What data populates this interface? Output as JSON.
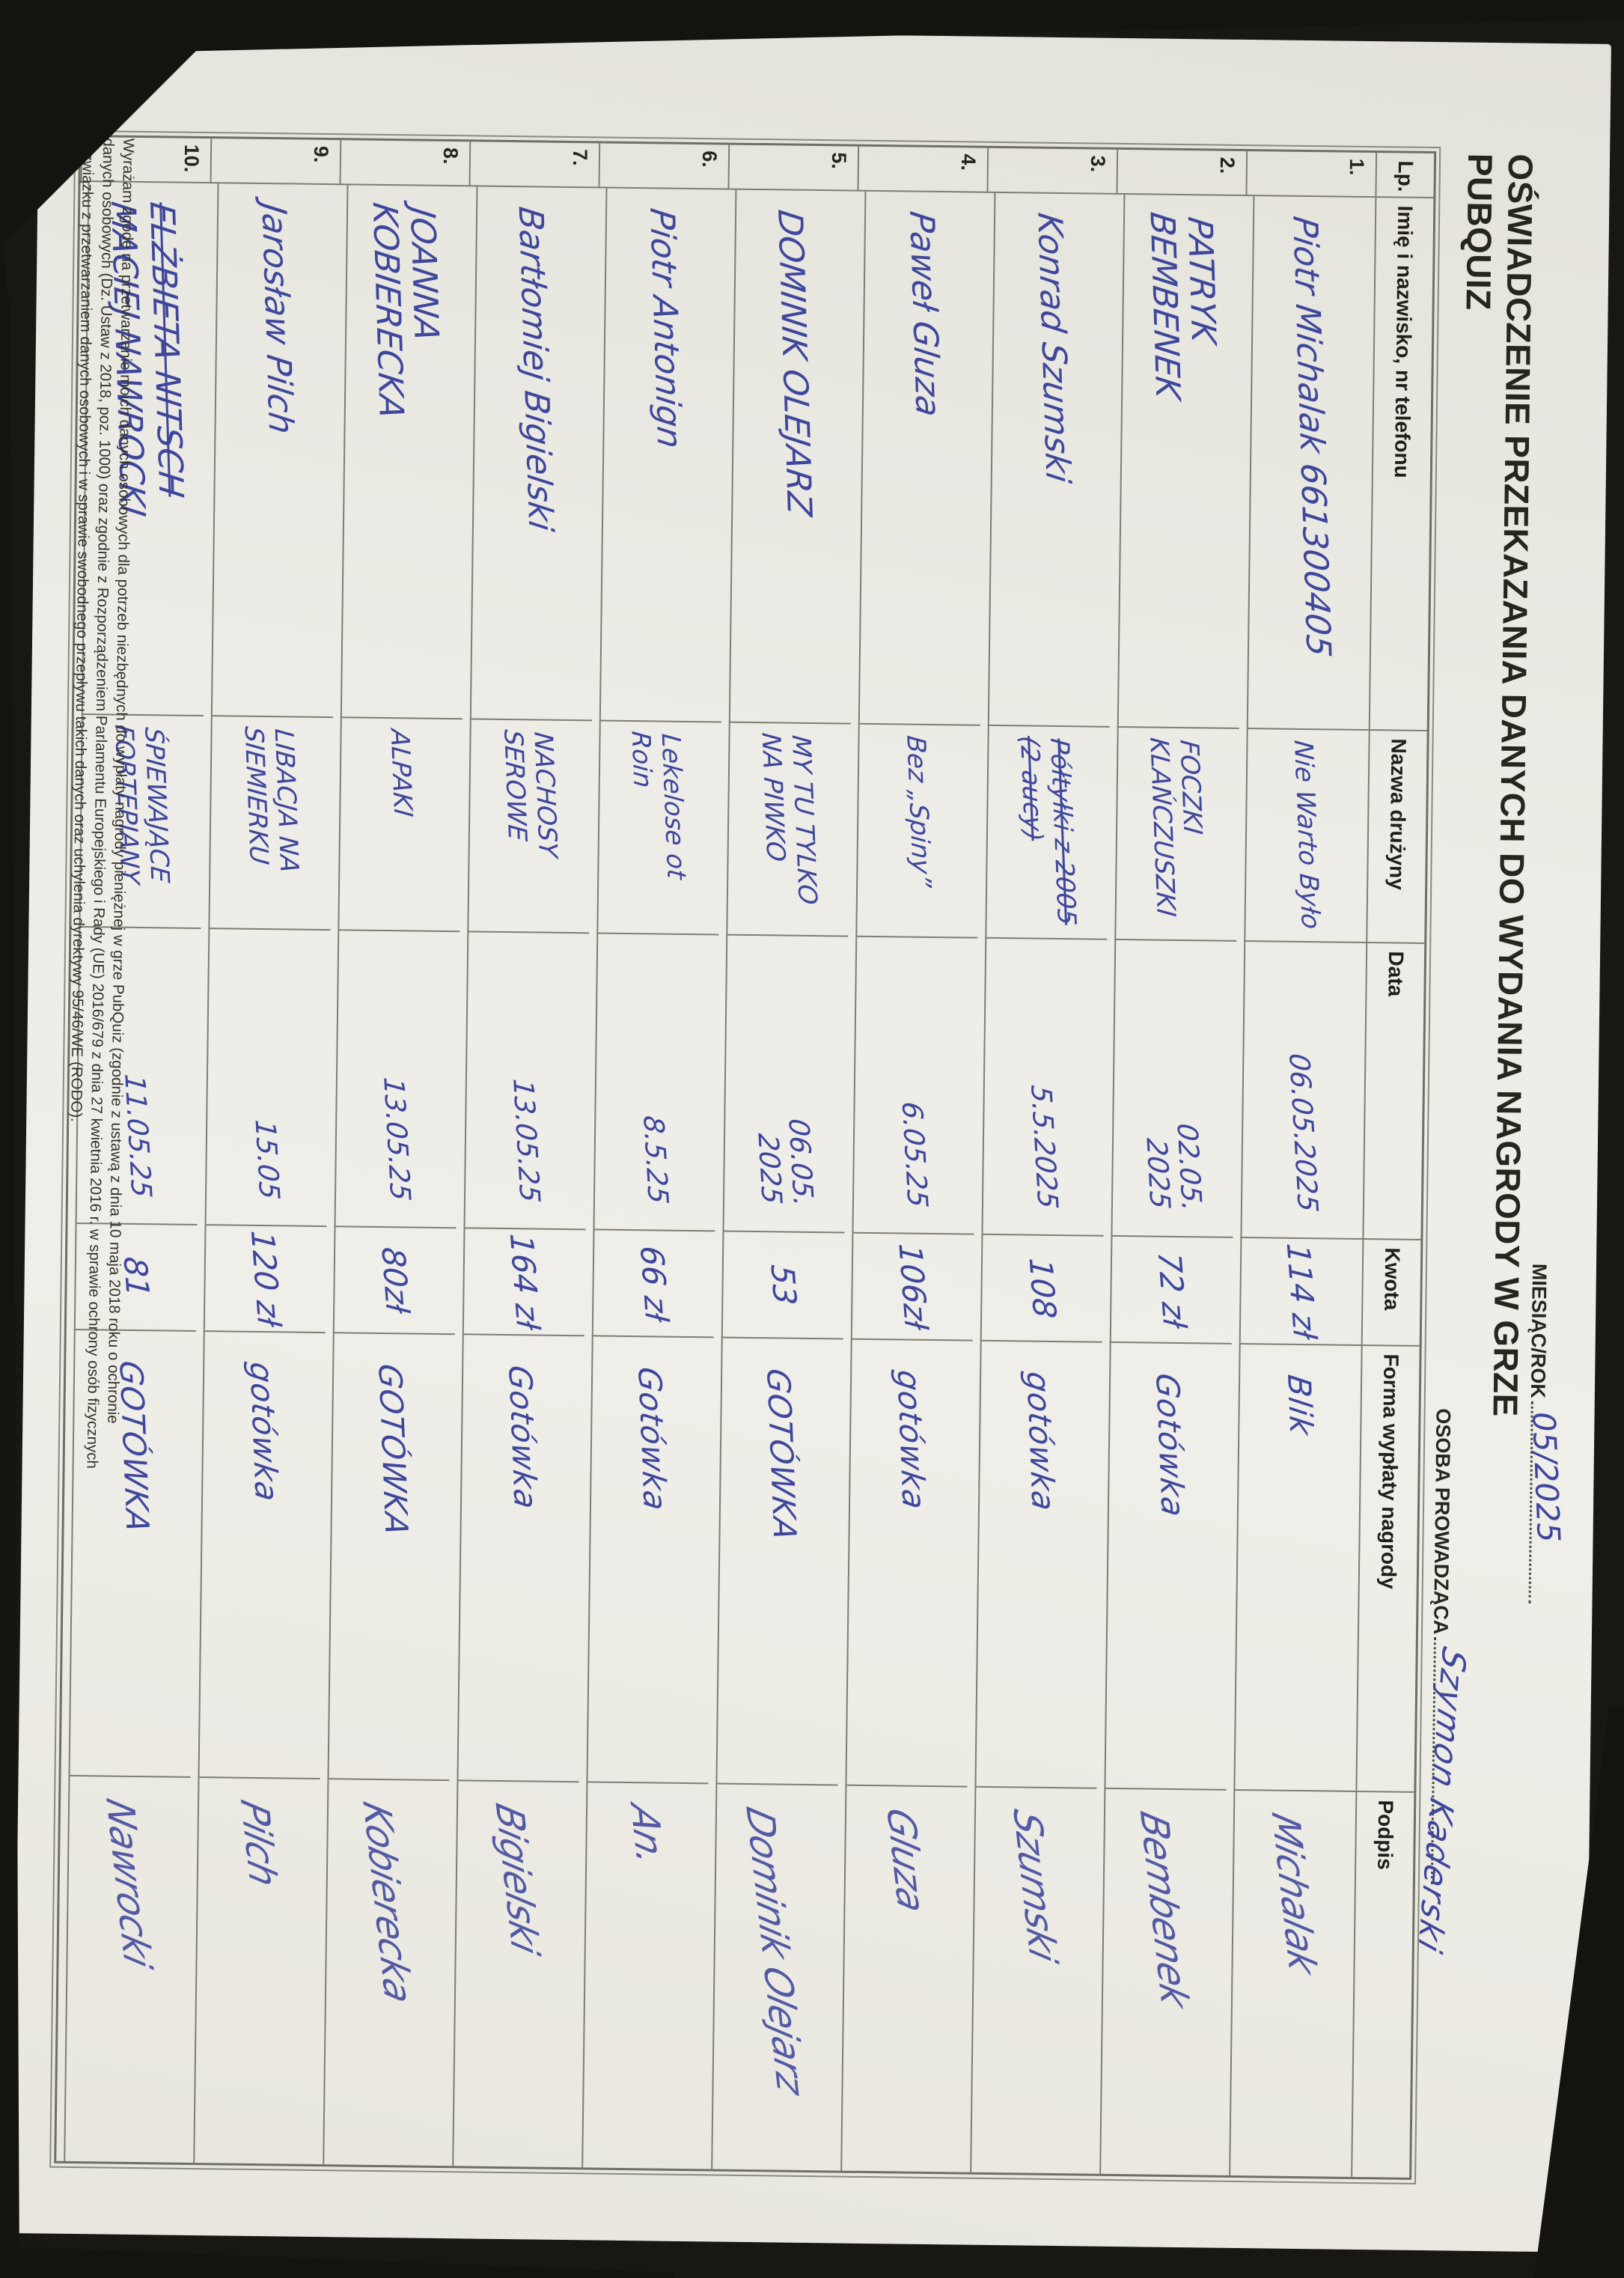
{
  "document": {
    "title": "OŚWIADCZENIE PRZEKAZANIA DANYCH DO WYDANIA NAGRODY W GRZE PUBQUIZ",
    "month_label": "MIESIĄC/ROK",
    "month_value": "05/2025",
    "host_label": "OSOBA PROWADZĄCA",
    "host_value": "Szymon Kaderski"
  },
  "table": {
    "headers": [
      "Lp.",
      "Imię i nazwisko, nr telefonu",
      "Nazwa drużyny",
      "Data",
      "Kwota",
      "Forma wypłaty nagrody",
      "Podpis"
    ],
    "rows": [
      {
        "lp": "1.",
        "name": "Piotr Michalak 661300405",
        "team": "Nie Warto Było",
        "date": "06.05.2025",
        "amount": "114 zł",
        "payment": "Blik",
        "signature": "Michalak"
      },
      {
        "lp": "2.",
        "name": "PATRYK\nBEMBENEK",
        "team": "FOCZKI\nKLAŃCZUSZKI",
        "date": "02.05.\n2025",
        "amount": "72 zł",
        "payment": "Gotówka",
        "signature": "Bembenek"
      },
      {
        "lp": "3.",
        "name": "Konrad Szumski",
        "team_struck": "Półtyłki z 2005\n(2 aucy)",
        "date": "5.5.2025",
        "amount": "108",
        "payment": "gotówka",
        "signature": "Szumski"
      },
      {
        "lp": "4.",
        "name": "Paweł Gluza",
        "team": "Bez „Spiny”",
        "date": "6.05.25",
        "amount": "106zł",
        "payment": "gotówka",
        "signature": "Gluza"
      },
      {
        "lp": "5.",
        "name": "DOMINIK OLEJARZ",
        "team": "MY TU TYLKO\nNA PIWKO",
        "date": "06.05.\n2025",
        "amount": "53",
        "payment": "GOTÓWKA",
        "signature": "Dominik Olejarz"
      },
      {
        "lp": "6.",
        "name": "Piotr Antonign",
        "team": "Lekelose ot Roin",
        "date": "8.5.25",
        "amount": "66 zł",
        "payment": "Gotówka",
        "signature": "An."
      },
      {
        "lp": "7.",
        "name": "Bartłomiej Bigielski",
        "team": "NACHOSY\nSEROWE",
        "date": "13.05.25",
        "amount": "164 zł",
        "payment": "Gotówka",
        "signature": "Bigielski"
      },
      {
        "lp": "8.",
        "name": "JOANNA\nKOBIERECKA",
        "team": "ALPAKI",
        "date": "13.05.25",
        "amount": "80zł",
        "payment": "GOTÓWKA",
        "signature": "Kobierecka"
      },
      {
        "lp": "9.",
        "name": "Jarosław Pilch",
        "team": "LIBACJA NA\nSIEMIERKU",
        "date": "15.05",
        "amount": "120 zł",
        "payment": "gotówka",
        "signature": "Pilch"
      },
      {
        "lp": "10.",
        "name_struck": "ELŻBIETA NITSCH",
        "name": "MACIEJ NAWROCKI",
        "team": "ŚPIEWAJĄCE\nFORTEPIANY",
        "date": "11.05.25",
        "amount": "81",
        "payment": "GOTÓWKA",
        "signature": "Nawrocki"
      }
    ]
  },
  "footer": {
    "lines": [
      "Wyrażam zgodę na przetwarzanie moich danych osobowych dla potrzeb niezbędnych do wypłaty nagrody pieniężnej w grze PubQuiz (zgodnie z ustawą z dnia 10 maja 2018 roku o ochronie",
      "danych osobowych (Dz. Ustaw z 2018, poz. 1000) oraz zgodnie z Rozporządzeniem Parlamentu Europejskiego i Rady (UE) 2016/679 z dnia 27 kwietnia 2016 r. w sprawie ochrony osób fizycznych",
      "w związku z przetwarzaniem danych osobowych i w sprawie swobodnego przepływu takich danych oraz uchylenia dyrektywy 95/46/WE (RODO)."
    ]
  },
  "colors": {
    "ink": "#3f479c",
    "paper": "#edece6",
    "grid_line": "#7e7e73",
    "print_text": "#26261f",
    "background": "#15130f"
  }
}
